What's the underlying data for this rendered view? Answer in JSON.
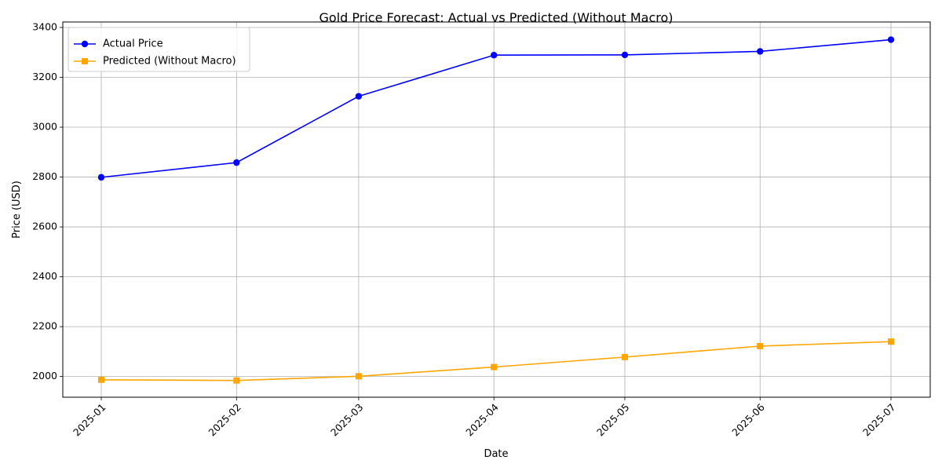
{
  "chart_data": {
    "type": "line",
    "title": "Gold Price Forecast: Actual vs Predicted (Without Macro)",
    "xlabel": "Date",
    "ylabel": "Price (USD)",
    "x": [
      "2025-01",
      "2025-02",
      "2025-03",
      "2025-04",
      "2025-05",
      "2025-06",
      "2025-07"
    ],
    "x_day_offsets": [
      0,
      31,
      59,
      90,
      120,
      151,
      181
    ],
    "ylim": [
      1917,
      3422
    ],
    "yticks": [
      2000,
      2200,
      2400,
      2600,
      2800,
      3000,
      3200,
      3400
    ],
    "grid": true,
    "legend": {
      "position": "top-left"
    },
    "series": [
      {
        "name": "Actual Price",
        "color": "#0000ff",
        "marker": "circle",
        "values": [
          2799,
          2858,
          3124,
          3289,
          3290,
          3304,
          3351
        ]
      },
      {
        "name": "Predicted (Without Macro)",
        "color": "#ffa500",
        "marker": "square",
        "values": [
          1987,
          1984,
          2001,
          2038,
          2078,
          2122,
          2140
        ]
      }
    ]
  }
}
